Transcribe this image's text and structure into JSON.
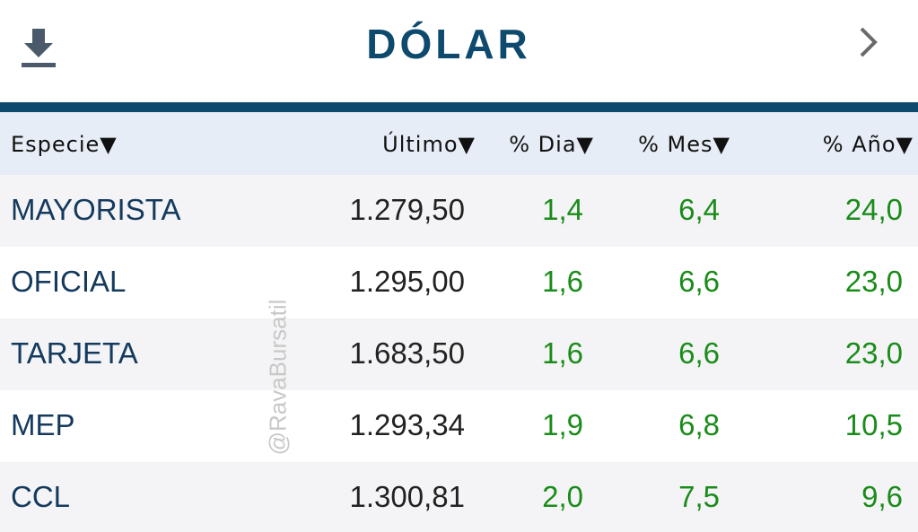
{
  "header": {
    "title": "DÓLAR"
  },
  "watermark": "@RavaBursatil",
  "table": {
    "columns": [
      "Especie▼",
      "Último▼",
      "% Dia▼",
      "% Mes▼",
      "% Año▼"
    ],
    "rows": [
      [
        "MAYORISTA",
        "1.279,50",
        "1,4",
        "6,4",
        "24,0"
      ],
      [
        "OFICIAL",
        "1.295,00",
        "1,6",
        "6,6",
        "23,0"
      ],
      [
        "TARJETA",
        "1.683,50",
        "1,6",
        "6,6",
        "23,0"
      ],
      [
        "MEP",
        "1.293,34",
        "1,9",
        "6,8",
        "10,5"
      ],
      [
        "CCL",
        "1.300,81",
        "2,0",
        "7,5",
        "9,6"
      ]
    ]
  }
}
